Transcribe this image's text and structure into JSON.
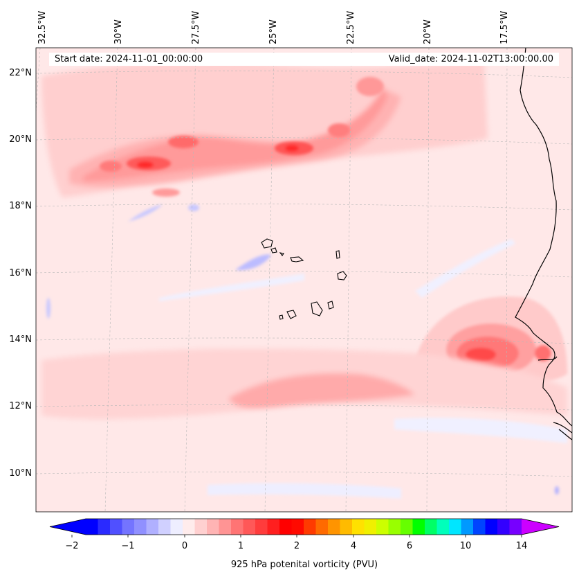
{
  "map": {
    "region": "Tropical eastern North Atlantic, Cape Verde islands and West African coast",
    "projection": "conic",
    "lon_labels": [
      "32.5°W",
      "30°W",
      "27.5°W",
      "25°W",
      "22.5°W",
      "20°W",
      "17.5°W"
    ],
    "lat_labels": [
      "22°N",
      "20°N",
      "18°N",
      "16°N",
      "14°N",
      "12°N",
      "10°N"
    ],
    "gridlines": true,
    "land_fill": "none",
    "coastline_color": "#000000",
    "features": [
      "West African coastline",
      "Cape Verde islands"
    ],
    "start_date_text": "Start date: 2024-11-01_00:00:00",
    "valid_date_text": "Valid_date: 2024-11-02T13:00:00.00",
    "field": {
      "variable": "925 hPa potential vorticity",
      "background_range_pvu": [
        0,
        0.25
      ],
      "maxima": [
        {
          "area": "Band near 19–20°N between 28°W and 24°W",
          "approx_pvu": 1.75
        },
        {
          "area": "Near 13.5°N, 18°W off the Senegal coast",
          "approx_pvu": 1.25
        },
        {
          "area": "Band near 12.5°N, 26°W to 21°W",
          "approx_pvu": 0.5
        }
      ],
      "minima": [
        {
          "area": "Streaks near 16.5°N, 26°W and 18.3°N, 29°W",
          "approx_pvu": -0.5
        }
      ]
    }
  },
  "colorbar": {
    "label": "925 hPa potenital vorticity (PVU)",
    "tick_labels": [
      "−2",
      "−1",
      "0",
      "1",
      "2",
      "4",
      "6",
      "10",
      "14"
    ],
    "extend": "both",
    "colors": [
      "#0000ff",
      "#2a2aff",
      "#5050ff",
      "#7474ff",
      "#9090ff",
      "#b0b0ff",
      "#d0d0ff",
      "#eeeeff",
      "#ffecec",
      "#ffd0d0",
      "#ffb4b4",
      "#ff9494",
      "#ff7474",
      "#ff5858",
      "#ff3c3c",
      "#ff1f1f",
      "#ff0000",
      "#ff0a00",
      "#ff3a00",
      "#ff6a00",
      "#ff9400",
      "#ffbb00",
      "#ffe100",
      "#f0f000",
      "#ccff00",
      "#99ff00",
      "#66ff00",
      "#00ff00",
      "#00ff66",
      "#00ffbb",
      "#00e6ff",
      "#0099ff",
      "#0044ff",
      "#0000ff",
      "#3300ff",
      "#7700ff"
    ],
    "under_color": "#0000ff",
    "over_color": "#cc00ff"
  }
}
